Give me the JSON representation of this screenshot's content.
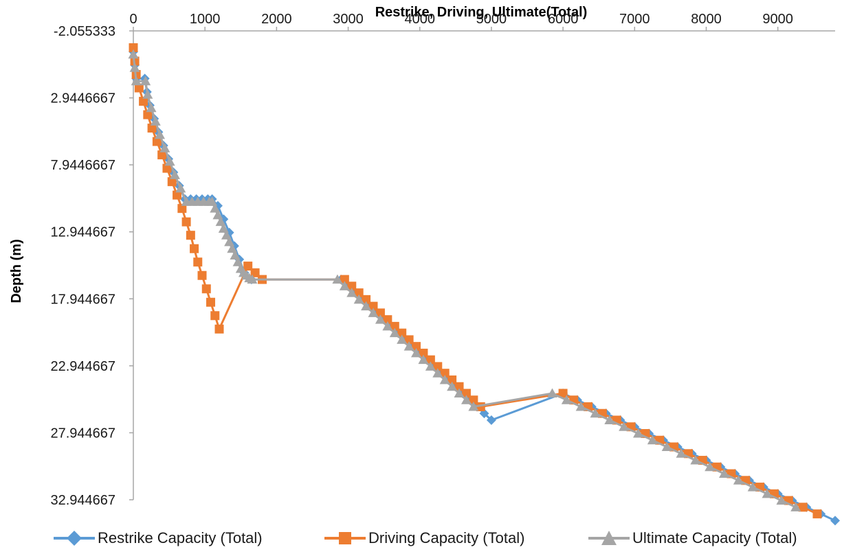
{
  "chart_data": {
    "type": "scatter",
    "title": "Restrike, Driving, Ultimate(Total)",
    "xlabel": "",
    "ylabel": "Depth (m)",
    "xlim": [
      0,
      9800
    ],
    "ylim": [
      -2.055333,
      32.944667
    ],
    "y_inverted": true,
    "x_ticks": [
      0,
      1000,
      2000,
      3000,
      4000,
      5000,
      6000,
      7000,
      8000,
      9000
    ],
    "y_ticks": [
      "-2.055333",
      "2.9446667",
      "7.9446667",
      "12.944667",
      "17.944667",
      "22.944667",
      "27.944667",
      "32.944667"
    ],
    "legend_position": "bottom",
    "series": [
      {
        "name": "Restrike Capacity (Total)",
        "color": "#5B9BD5",
        "marker": "diamond",
        "x": [
          0,
          20,
          40,
          160,
          190,
          230,
          290,
          350,
          420,
          490,
          560,
          640,
          720,
          800,
          880,
          960,
          1040,
          1100,
          1180,
          1260,
          1340,
          1410,
          1480,
          1550,
          1650,
          2900,
          3000,
          3100,
          3200,
          3300,
          3400,
          3500,
          3600,
          3700,
          3800,
          3900,
          4000,
          4100,
          4200,
          4300,
          4400,
          4500,
          4600,
          4700,
          4800,
          4900,
          5000,
          6000,
          6200,
          6400,
          6600,
          6800,
          7000,
          7200,
          7400,
          7600,
          7800,
          8000,
          8200,
          8400,
          8600,
          8800,
          9000,
          9200,
          9400,
          9600,
          9800
        ],
        "y": [
          -0.5,
          0.5,
          1.5,
          1.5,
          2.5,
          3.5,
          4.5,
          5.5,
          6.5,
          7.5,
          8.5,
          9.5,
          10.5,
          10.5,
          10.5,
          10.5,
          10.5,
          10.5,
          11.0,
          12.0,
          13.0,
          14.0,
          15.0,
          16.0,
          16.5,
          16.5,
          17.0,
          17.5,
          18.0,
          18.5,
          19.0,
          19.5,
          20.0,
          20.5,
          21.0,
          21.5,
          22.0,
          22.5,
          23.0,
          23.5,
          24.0,
          24.5,
          25.0,
          25.5,
          26.0,
          26.5,
          27.0,
          25.0,
          25.5,
          26.0,
          26.5,
          27.0,
          27.5,
          28.0,
          28.5,
          29.0,
          29.5,
          30.0,
          30.5,
          31.0,
          31.5,
          32.0,
          32.5,
          33.0,
          33.5,
          34.0,
          34.5
        ]
      },
      {
        "name": "Driving Capacity (Total)",
        "color": "#ED7D31",
        "marker": "square",
        "x": [
          0,
          20,
          40,
          80,
          140,
          200,
          260,
          330,
          400,
          470,
          540,
          610,
          680,
          740,
          800,
          850,
          900,
          960,
          1020,
          1080,
          1140,
          1200,
          1600,
          1700,
          1800,
          2950,
          3050,
          3150,
          3250,
          3350,
          3450,
          3550,
          3650,
          3750,
          3850,
          3950,
          4050,
          4150,
          4250,
          4350,
          4450,
          4550,
          4650,
          4750,
          4850,
          6000,
          6150,
          6350,
          6550,
          6750,
          6950,
          7150,
          7350,
          7550,
          7750,
          7950,
          8150,
          8350,
          8550,
          8750,
          8950,
          9150,
          9350,
          9550
        ],
        "y": [
          -0.8,
          0.2,
          1.2,
          2.2,
          3.2,
          4.2,
          5.2,
          6.2,
          7.2,
          8.2,
          9.2,
          10.2,
          11.2,
          12.2,
          13.2,
          14.2,
          15.2,
          16.2,
          17.2,
          18.2,
          19.2,
          20.2,
          15.5,
          16.0,
          16.5,
          16.5,
          17.0,
          17.5,
          18.0,
          18.5,
          19.0,
          19.5,
          20.0,
          20.5,
          21.0,
          21.5,
          22.0,
          22.5,
          23.0,
          23.5,
          24.0,
          24.5,
          25.0,
          25.5,
          26.0,
          25.0,
          25.5,
          26.0,
          26.5,
          27.0,
          27.5,
          28.0,
          28.5,
          29.0,
          29.5,
          30.0,
          30.5,
          31.0,
          31.5,
          32.0,
          32.5,
          33.0,
          33.5,
          34.0
        ]
      },
      {
        "name": "Ultimate Capacity (Total)",
        "color": "#A5A5A5",
        "marker": "triangle",
        "x": [
          0,
          20,
          40,
          170,
          200,
          250,
          310,
          370,
          440,
          510,
          580,
          660,
          740,
          820,
          900,
          980,
          1060,
          1100,
          1140,
          1180,
          1220,
          1260,
          1300,
          1340,
          1380,
          1420,
          1460,
          1500,
          1540,
          1580,
          1620,
          1660,
          2850,
          2950,
          3050,
          3150,
          3250,
          3350,
          3450,
          3550,
          3650,
          3750,
          3850,
          3950,
          4050,
          4150,
          4250,
          4350,
          4450,
          4550,
          4650,
          4750,
          5850,
          6050,
          6250,
          6450,
          6650,
          6850,
          7050,
          7250,
          7450,
          7650,
          7850,
          8050,
          8250,
          8450,
          8650,
          8850,
          9050,
          9250
        ],
        "y": [
          -0.3,
          0.7,
          1.7,
          1.7,
          2.7,
          3.7,
          4.7,
          5.7,
          6.7,
          7.7,
          8.7,
          9.7,
          10.7,
          10.7,
          10.7,
          10.7,
          10.7,
          10.7,
          11.2,
          11.7,
          12.2,
          12.7,
          13.2,
          13.7,
          14.2,
          14.7,
          15.2,
          15.7,
          16.0,
          16.2,
          16.4,
          16.5,
          16.5,
          17.0,
          17.5,
          18.0,
          18.5,
          19.0,
          19.5,
          20.0,
          20.5,
          21.0,
          21.5,
          22.0,
          22.5,
          23.0,
          23.5,
          24.0,
          24.5,
          25.0,
          25.5,
          26.0,
          25.0,
          25.5,
          26.0,
          26.5,
          27.0,
          27.5,
          28.0,
          28.5,
          29.0,
          29.5,
          30.0,
          30.5,
          31.0,
          31.5,
          32.0,
          32.5,
          33.0,
          33.5
        ]
      }
    ]
  }
}
